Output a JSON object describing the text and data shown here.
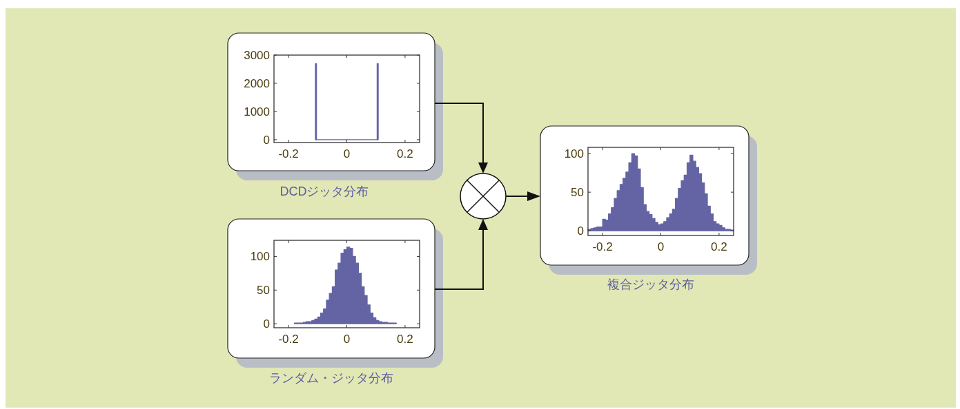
{
  "chart_data": [
    {
      "type": "histogram",
      "title": "DCDジッタ分布",
      "bins": [
        -0.108,
        -0.104,
        0.104,
        0.108
      ],
      "values": [
        2700,
        0,
        2700
      ],
      "color": "#6464a4",
      "xlim": [
        -0.25,
        0.25
      ],
      "ylim": [
        -100,
        3000
      ],
      "xticks": [
        -0.2,
        0,
        0.2
      ],
      "yticks": [
        0,
        1000,
        2000,
        3000
      ]
    },
    {
      "type": "histogram",
      "title": "ランダム・ジッタ分布",
      "bins": [
        -0.18,
        -0.17,
        -0.16,
        -0.15,
        -0.14,
        -0.13,
        -0.12,
        -0.11,
        -0.1,
        -0.09,
        -0.08,
        -0.07,
        -0.06,
        -0.05,
        -0.04,
        -0.03,
        -0.02,
        -0.01,
        0,
        0.01,
        0.02,
        0.03,
        0.04,
        0.05,
        0.06,
        0.07,
        0.08,
        0.09,
        0.1,
        0.11,
        0.12,
        0.13,
        0.14,
        0.15,
        0.16,
        0.17
      ],
      "values": [
        1,
        1,
        1,
        2,
        3,
        3,
        5,
        7,
        10,
        16,
        22,
        35,
        45,
        55,
        80,
        90,
        105,
        110,
        114,
        112,
        100,
        90,
        75,
        55,
        42,
        28,
        16,
        9,
        5,
        3,
        2,
        2,
        1,
        1,
        1
      ],
      "color": "#6464a4",
      "xlim": [
        -0.25,
        0.25
      ],
      "ylim": [
        -6,
        124
      ],
      "xticks": [
        -0.2,
        0,
        0.2
      ],
      "yticks": [
        0,
        50,
        100
      ]
    },
    {
      "type": "histogram",
      "title": "複合ジッタ分布",
      "bins": [
        -0.25,
        -0.24,
        -0.23,
        -0.22,
        -0.21,
        -0.2,
        -0.19,
        -0.18,
        -0.17,
        -0.16,
        -0.15,
        -0.14,
        -0.13,
        -0.12,
        -0.11,
        -0.1,
        -0.09,
        -0.08,
        -0.07,
        -0.06,
        -0.05,
        -0.04,
        -0.03,
        -0.02,
        -0.01,
        0,
        0.01,
        0.02,
        0.03,
        0.04,
        0.05,
        0.06,
        0.07,
        0.08,
        0.09,
        0.1,
        0.11,
        0.12,
        0.13,
        0.14,
        0.15,
        0.16,
        0.17,
        0.18,
        0.19,
        0.2,
        0.21,
        0.22,
        0.23,
        0.24,
        0.25
      ],
      "values": [
        2,
        3,
        4,
        5,
        5,
        15,
        14,
        22,
        30,
        42,
        52,
        60,
        68,
        76,
        88,
        100,
        97,
        80,
        56,
        34,
        25,
        21,
        16,
        11,
        8,
        9,
        12,
        17,
        22,
        28,
        42,
        55,
        65,
        72,
        88,
        98,
        90,
        82,
        74,
        62,
        48,
        32,
        22,
        12,
        9,
        7,
        4,
        2,
        2,
        1
      ],
      "color": "#6464a4",
      "xlim": [
        -0.25,
        0.25
      ],
      "ylim": [
        -6,
        108
      ],
      "xticks": [
        -0.2,
        0,
        0.2
      ],
      "yticks": [
        0,
        50,
        100
      ]
    }
  ]
}
